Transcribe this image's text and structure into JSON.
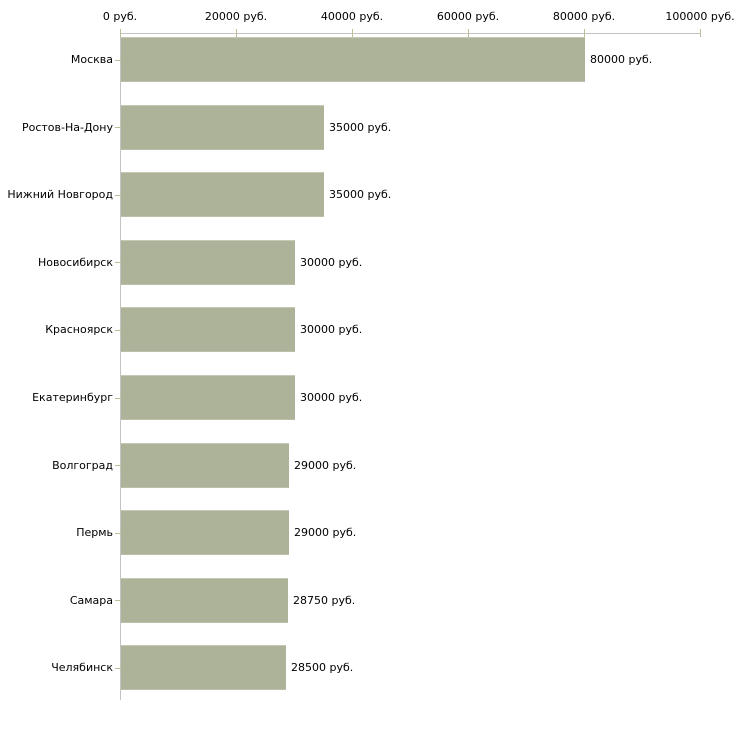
{
  "chart_data": {
    "type": "bar",
    "orientation": "horizontal",
    "title": "",
    "legend": false,
    "categories": [
      "Москва",
      "Ростов-На-Дону",
      "Нижний Новгород",
      "Новосибирск",
      "Красноярск",
      "Екатеринбург",
      "Волгоград",
      "Пермь",
      "Самара",
      "Челябинск"
    ],
    "values": [
      80000,
      35000,
      35000,
      30000,
      30000,
      30000,
      29000,
      29000,
      28750,
      28500
    ],
    "value_labels": [
      "80000 руб.",
      "35000 руб.",
      "35000 руб.",
      "30000 руб.",
      "30000 руб.",
      "30000 руб.",
      "29000 руб.",
      "29000 руб.",
      "28750 руб.",
      "28500 руб."
    ],
    "x_axis": {
      "position": "top",
      "range": [
        0,
        100000
      ],
      "ticks": [
        0,
        20000,
        40000,
        60000,
        80000,
        100000
      ],
      "tick_labels": [
        "0 руб.",
        "20000 руб.",
        "40000 руб.",
        "60000 руб.",
        "80000 руб.",
        "100000 руб."
      ],
      "grid": false
    },
    "colors": {
      "bar": "#adb398",
      "axis_line": "#c3c3c3",
      "tick": "#bdbd96",
      "text": "#000000",
      "background": "#ffffff"
    }
  }
}
